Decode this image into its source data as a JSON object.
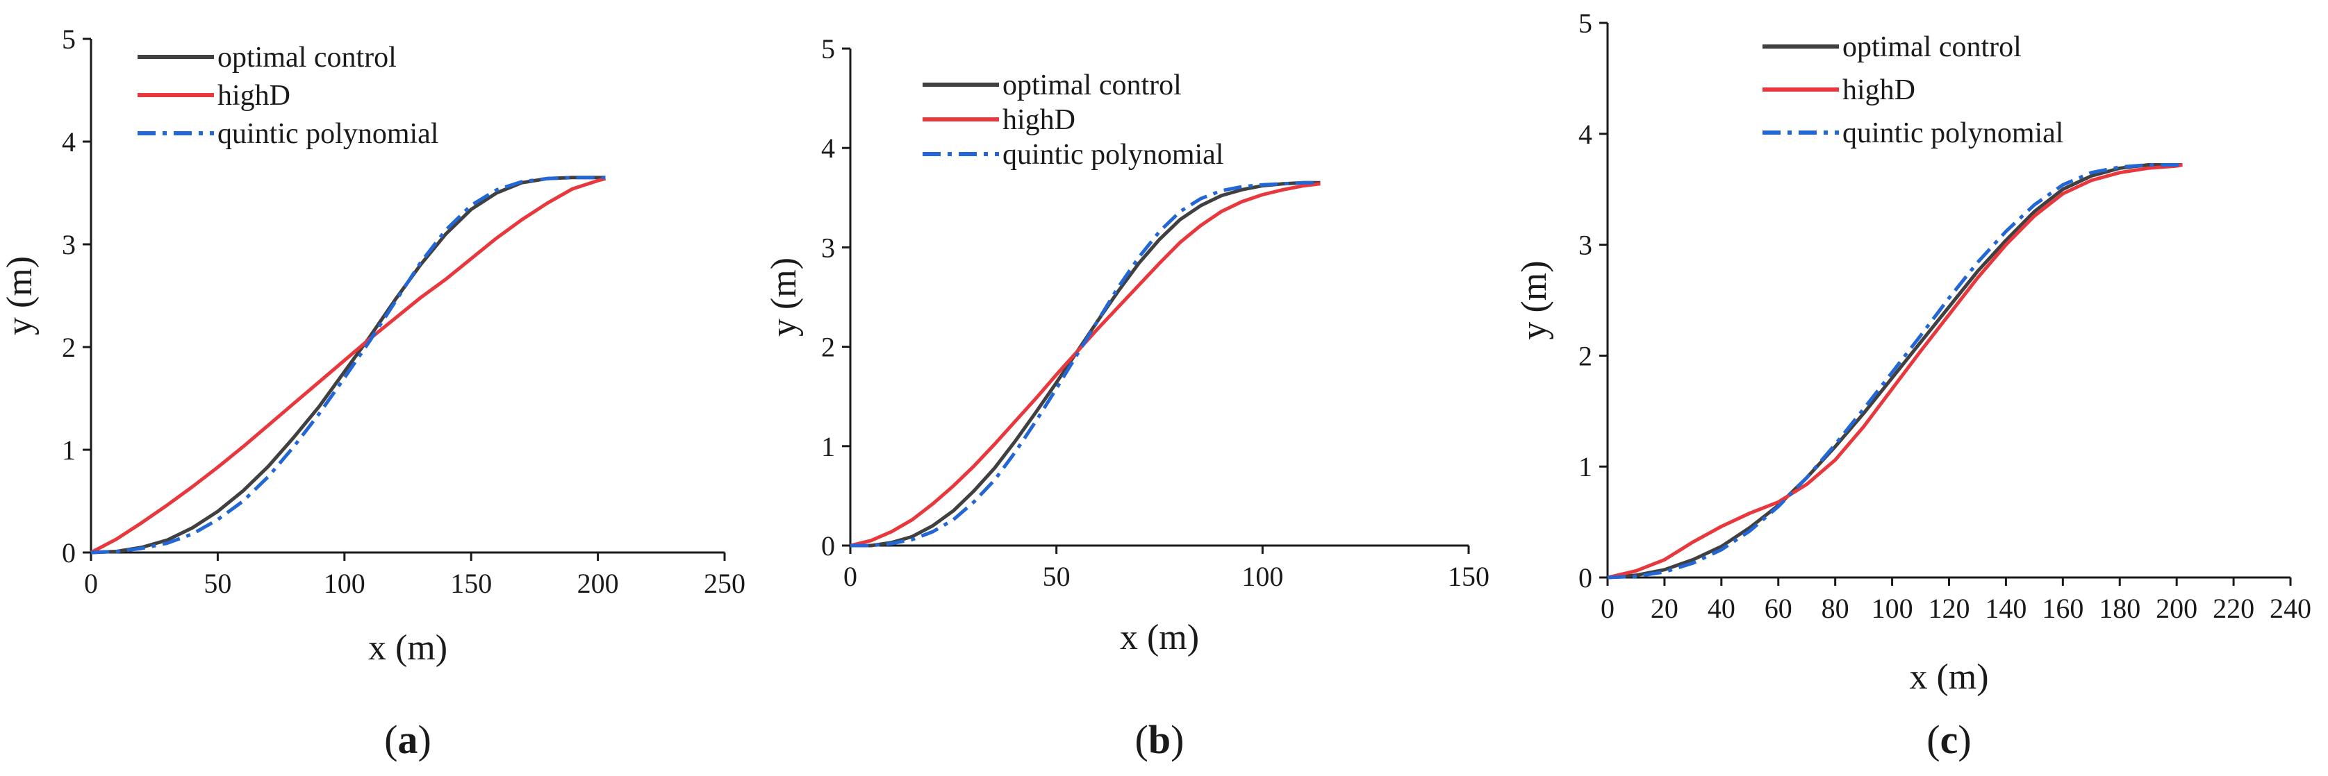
{
  "figure": {
    "legend_labels": [
      "optimal control",
      "highD",
      "quintic polynomial"
    ],
    "colors": {
      "optimal": "#404040",
      "highD": "#e8383d",
      "quintic": "#2367d6"
    }
  },
  "chart_data": [
    {
      "type": "line",
      "panel_label": {
        "open": "(",
        "letter": "a",
        "close": ")"
      },
      "xlabel": "x (m)",
      "ylabel": "y (m)",
      "xlim": [
        0,
        250
      ],
      "ylim": [
        0,
        5
      ],
      "xticks": [
        0,
        50,
        100,
        150,
        200,
        250
      ],
      "yticks": [
        0,
        1,
        2,
        3,
        4,
        5
      ],
      "legend_position": "top-left",
      "series": [
        {
          "name": "optimal control",
          "style": "solid",
          "x": [
            0,
            10,
            20,
            30,
            40,
            50,
            60,
            70,
            80,
            90,
            100,
            110,
            120,
            130,
            140,
            150,
            160,
            170,
            180,
            190,
            200,
            203
          ],
          "y": [
            0,
            0.01,
            0.05,
            0.12,
            0.24,
            0.4,
            0.6,
            0.84,
            1.12,
            1.42,
            1.76,
            2.1,
            2.46,
            2.8,
            3.1,
            3.34,
            3.5,
            3.6,
            3.64,
            3.65,
            3.65,
            3.65
          ]
        },
        {
          "name": "highD",
          "style": "solid",
          "x": [
            0,
            10,
            20,
            30,
            40,
            50,
            60,
            70,
            80,
            90,
            100,
            110,
            120,
            130,
            140,
            150,
            160,
            170,
            180,
            190,
            200,
            203
          ],
          "y": [
            0,
            0.13,
            0.29,
            0.46,
            0.64,
            0.83,
            1.03,
            1.24,
            1.45,
            1.66,
            1.87,
            2.08,
            2.28,
            2.48,
            2.66,
            2.86,
            3.06,
            3.24,
            3.4,
            3.54,
            3.62,
            3.64
          ]
        },
        {
          "name": "quintic polynomial",
          "style": "dashdot",
          "x": [
            0,
            10,
            20,
            30,
            40,
            50,
            60,
            70,
            80,
            90,
            100,
            110,
            120,
            130,
            140,
            150,
            160,
            170,
            180,
            190,
            200,
            203
          ],
          "y": [
            0,
            0.01,
            0.04,
            0.09,
            0.18,
            0.32,
            0.5,
            0.74,
            1.03,
            1.35,
            1.7,
            2.06,
            2.44,
            2.82,
            3.14,
            3.38,
            3.53,
            3.61,
            3.64,
            3.65,
            3.65,
            3.65
          ]
        }
      ]
    },
    {
      "type": "line",
      "panel_label": {
        "open": "(",
        "letter": "b",
        "close": ")"
      },
      "xlabel": "x (m)",
      "ylabel": "y (m)",
      "xlim": [
        0,
        150
      ],
      "ylim": [
        0,
        5
      ],
      "xticks": [
        0,
        50,
        100,
        150
      ],
      "yticks": [
        0,
        1,
        2,
        3,
        4,
        5
      ],
      "legend_position": "top-center",
      "series": [
        {
          "name": "optimal control",
          "style": "solid",
          "x": [
            0,
            5,
            10,
            15,
            20,
            25,
            30,
            35,
            40,
            45,
            50,
            55,
            60,
            65,
            70,
            75,
            80,
            85,
            90,
            95,
            100,
            105,
            110,
            114
          ],
          "y": [
            0,
            0.0,
            0.03,
            0.09,
            0.2,
            0.35,
            0.55,
            0.78,
            1.05,
            1.34,
            1.64,
            1.95,
            2.26,
            2.56,
            2.84,
            3.08,
            3.28,
            3.42,
            3.52,
            3.58,
            3.62,
            3.64,
            3.65,
            3.65
          ]
        },
        {
          "name": "highD",
          "style": "solid",
          "x": [
            0,
            5,
            10,
            15,
            20,
            25,
            30,
            35,
            40,
            45,
            50,
            55,
            60,
            65,
            70,
            75,
            80,
            85,
            90,
            95,
            100,
            105,
            110,
            114
          ],
          "y": [
            0,
            0.05,
            0.14,
            0.26,
            0.42,
            0.6,
            0.8,
            1.02,
            1.25,
            1.48,
            1.72,
            1.95,
            2.18,
            2.4,
            2.62,
            2.84,
            3.05,
            3.22,
            3.36,
            3.46,
            3.53,
            3.58,
            3.62,
            3.64
          ]
        },
        {
          "name": "quintic polynomial",
          "style": "dashdot",
          "x": [
            0,
            5,
            10,
            15,
            20,
            25,
            30,
            35,
            40,
            45,
            50,
            55,
            60,
            65,
            70,
            75,
            80,
            85,
            90,
            95,
            100,
            105,
            110,
            114
          ],
          "y": [
            0,
            0.0,
            0.02,
            0.06,
            0.14,
            0.26,
            0.44,
            0.66,
            0.94,
            1.25,
            1.58,
            1.92,
            2.26,
            2.6,
            2.9,
            3.16,
            3.36,
            3.49,
            3.57,
            3.61,
            3.63,
            3.64,
            3.65,
            3.65
          ]
        }
      ]
    },
    {
      "type": "line",
      "panel_label": {
        "open": "(",
        "letter": "c",
        "close": ")"
      },
      "xlabel": "x (m)",
      "ylabel": "y (m)",
      "xlim": [
        0,
        240
      ],
      "ylim": [
        0,
        5
      ],
      "xticks": [
        0,
        20,
        40,
        60,
        80,
        100,
        120,
        140,
        160,
        180,
        200,
        220,
        240
      ],
      "yticks": [
        0,
        1,
        2,
        3,
        4,
        5
      ],
      "legend_position": "top-center",
      "series": [
        {
          "name": "optimal control",
          "style": "solid",
          "x": [
            0,
            10,
            20,
            30,
            40,
            50,
            60,
            70,
            80,
            90,
            100,
            110,
            120,
            130,
            140,
            150,
            160,
            170,
            180,
            190,
            200,
            202
          ],
          "y": [
            0,
            0.02,
            0.07,
            0.16,
            0.28,
            0.45,
            0.65,
            0.9,
            1.18,
            1.48,
            1.8,
            2.12,
            2.44,
            2.76,
            3.04,
            3.3,
            3.5,
            3.62,
            3.69,
            3.72,
            3.72,
            3.72
          ]
        },
        {
          "name": "highD",
          "style": "solid",
          "x": [
            0,
            10,
            20,
            30,
            40,
            50,
            60,
            70,
            80,
            90,
            100,
            110,
            120,
            130,
            140,
            150,
            160,
            170,
            180,
            190,
            200,
            202
          ],
          "y": [
            0,
            0.06,
            0.16,
            0.32,
            0.46,
            0.58,
            0.68,
            0.84,
            1.06,
            1.36,
            1.7,
            2.04,
            2.37,
            2.7,
            3.0,
            3.26,
            3.46,
            3.58,
            3.65,
            3.69,
            3.71,
            3.72
          ]
        },
        {
          "name": "quintic polynomial",
          "style": "dashdot",
          "x": [
            0,
            10,
            20,
            30,
            40,
            50,
            60,
            70,
            80,
            90,
            100,
            110,
            120,
            130,
            140,
            150,
            160,
            170,
            180,
            190,
            200,
            202
          ],
          "y": [
            0,
            0.01,
            0.05,
            0.13,
            0.25,
            0.42,
            0.64,
            0.9,
            1.2,
            1.52,
            1.85,
            2.18,
            2.52,
            2.84,
            3.12,
            3.36,
            3.54,
            3.65,
            3.7,
            3.72,
            3.72,
            3.72
          ]
        }
      ]
    }
  ]
}
